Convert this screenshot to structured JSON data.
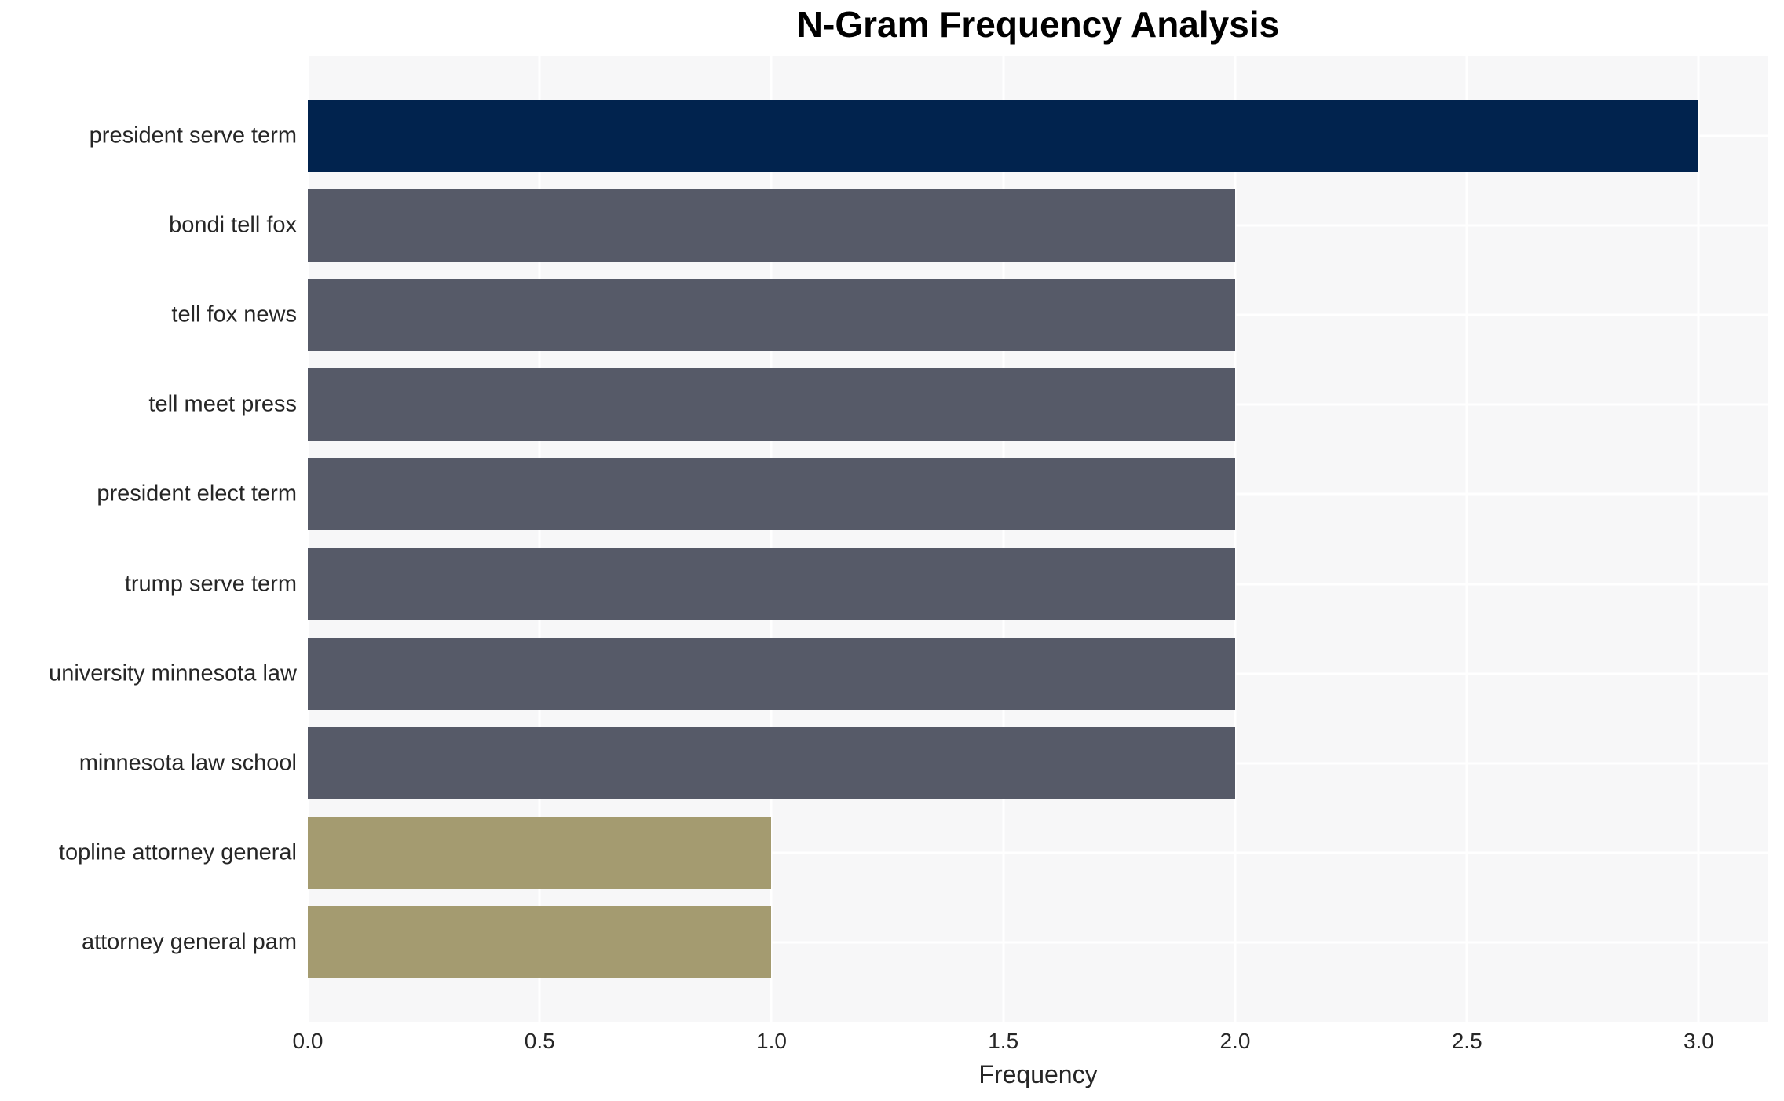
{
  "chart_data": {
    "type": "bar",
    "orientation": "horizontal",
    "title": "N-Gram Frequency Analysis",
    "xlabel": "Frequency",
    "ylabel": "",
    "categories": [
      "president serve term",
      "bondi tell fox",
      "tell fox news",
      "tell meet press",
      "president elect term",
      "trump serve term",
      "university minnesota law",
      "minnesota law school",
      "topline attorney general",
      "attorney general pam"
    ],
    "values": [
      3,
      2,
      2,
      2,
      2,
      2,
      2,
      2,
      1,
      1
    ],
    "bar_colors": [
      "#01234e",
      "#565a68",
      "#565a68",
      "#565a68",
      "#565a68",
      "#565a68",
      "#565a68",
      "#565a68",
      "#a49b70",
      "#a49b70"
    ],
    "xlim": [
      0,
      3.15
    ],
    "xticks": [
      0.0,
      0.5,
      1.0,
      1.5,
      2.0,
      2.5,
      3.0
    ],
    "xtick_labels": [
      "0.0",
      "0.5",
      "1.0",
      "1.5",
      "2.0",
      "2.5",
      "3.0"
    ],
    "grid": true,
    "legend": false,
    "colors": {
      "plot_background": "#f7f7f8",
      "gridline": "#ffffff",
      "title_text": "#000000",
      "tick_text": "#262626"
    }
  }
}
